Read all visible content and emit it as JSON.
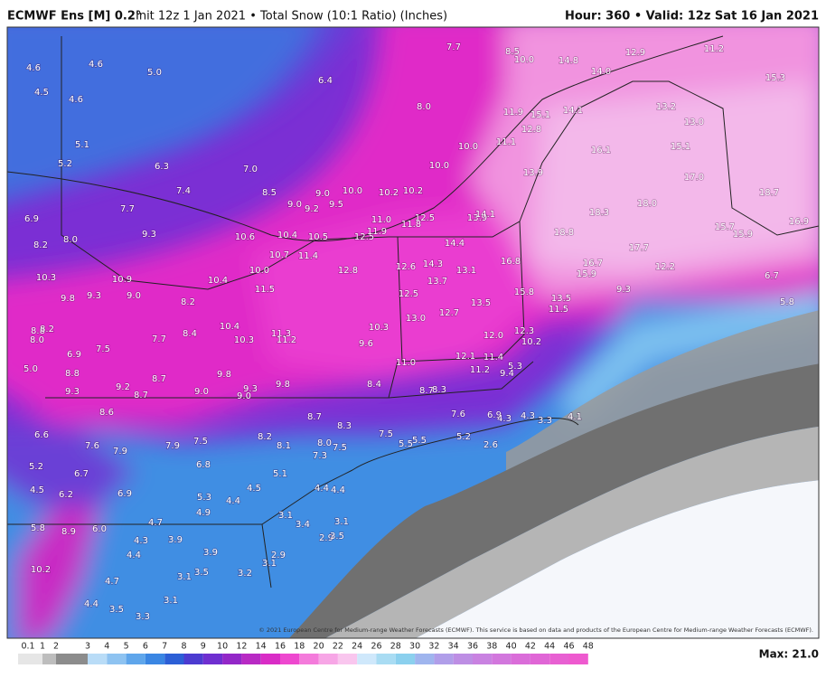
{
  "header": {
    "model": "ECMWF Ens [M] 0.2°",
    "description": "Init 12z 1 Jan 2021 • Total Snow (10:1 Ratio) (Inches)",
    "valid": "Hour: 360 • Valid: 12z Sat 16 Jan 2021"
  },
  "map": {
    "labels": [
      "4.6",
      "4.6",
      "5.0",
      "4.5",
      "4.6",
      "6.4",
      "7.7",
      "8.5",
      "10.0",
      "14.8",
      "14.0",
      "12.9",
      "11.2",
      "15.3",
      "5.1",
      "8.0",
      "11.9",
      "15.1",
      "14.1",
      "12.8",
      "13.2",
      "13.0",
      "5.2",
      "6.3",
      "7.0",
      "10.0",
      "11.1",
      "10.0",
      "13.9",
      "16.1",
      "15.1",
      "17.0",
      "7.4",
      "8.5",
      "9.0",
      "10.0",
      "10.2",
      "10.2",
      "18.7",
      "9.0",
      "9.2",
      "9.5",
      "7.7",
      "11.0",
      "12.5",
      "13.9",
      "14.1",
      "18.3",
      "18.0",
      "6.9",
      "8.0",
      "9.3",
      "10.6",
      "10.4",
      "10.5",
      "12.5",
      "11.9",
      "11.8",
      "16.9",
      "18.8",
      "15.9",
      "15.7",
      "8.2",
      "14.4",
      "17.7",
      "16.7",
      "16.8",
      "15.9",
      "12.2",
      "10.7",
      "11.4",
      "12.8",
      "12.6",
      "14.3",
      "13.1",
      "10.4",
      "10.0",
      "6.7",
      "10.3",
      "10.9",
      "13.7",
      "9.8",
      "9.3",
      "9.0",
      "8.2",
      "11.5",
      "12.5",
      "15.8",
      "13.5",
      "9.3",
      "5.8",
      "13.5",
      "11.5",
      "12.7",
      "13.0",
      "8.8",
      "8.2",
      "8.0",
      "10.4",
      "10.3",
      "12.0",
      "12.3",
      "7.7",
      "8.4",
      "10.3",
      "11.3",
      "11.2",
      "9.6",
      "10.2",
      "6.9",
      "7.5",
      "12.1",
      "11.4",
      "11.0",
      "5.0",
      "8.8",
      "9.8",
      "11.2",
      "9.4",
      "5.3",
      "9.2",
      "8.7",
      "9.0",
      "9.3",
      "9.8",
      "8.4",
      "8.7",
      "8.3",
      "9.3",
      "8.7",
      "9.0",
      "8.6",
      "8.7",
      "8.3",
      "7.6",
      "6.9",
      "4.3",
      "4.3",
      "3.3",
      "4.1",
      "6.6",
      "7.6",
      "7.9",
      "7.9",
      "8.2",
      "8.1",
      "7.5",
      "8.0",
      "7.5",
      "7.3",
      "7.5",
      "5.5",
      "5.5",
      "5.2",
      "2.6",
      "5.2",
      "6.7",
      "6.8",
      "5.1",
      "4.5",
      "6.2",
      "6.9",
      "5.3",
      "4.4",
      "4.5",
      "4.4",
      "4.4",
      "4.9",
      "3.1",
      "3.4",
      "3.1",
      "5.8",
      "8.9",
      "6.0",
      "4.7",
      "3.9",
      "4.3",
      "2.9",
      "3.5",
      "4.4",
      "3.9",
      "2.9",
      "3.1",
      "10.2",
      "4.7",
      "3.1",
      "3.5",
      "3.2",
      "4.4",
      "3.5",
      "3.1",
      "3.3"
    ],
    "copyright": "© 2021 European Centre for Medium-range Weather Forecasts (ECMWF). This service is based on data and products of the European Centre for Medium-range Weather Forecasts (ECMWF)."
  },
  "legend": {
    "ticks": [
      "0.1",
      "1",
      "2",
      "3",
      "4",
      "5",
      "6",
      "7",
      "8",
      "9",
      "10",
      "12",
      "14",
      "16",
      "18",
      "20",
      "22",
      "24",
      "26",
      "28",
      "30",
      "32",
      "34",
      "36",
      "38",
      "40",
      "42",
      "44",
      "46",
      "48"
    ],
    "max": "Max: 21.0"
  }
}
